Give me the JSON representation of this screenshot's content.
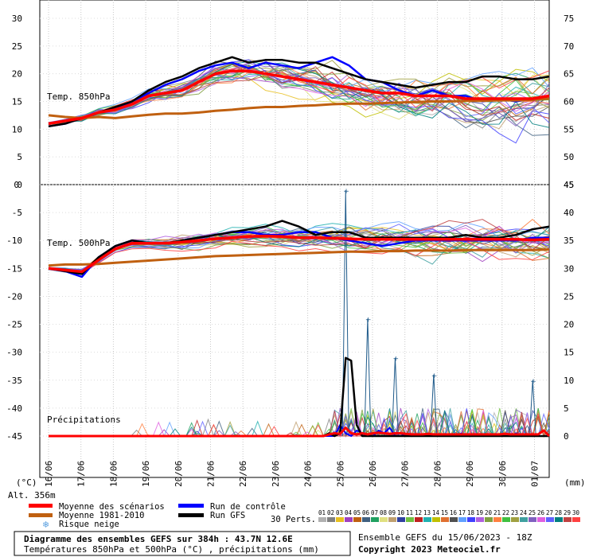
{
  "chart_data": {
    "type": "line",
    "title": "Diagramme des ensembles GEFS sur 384h : 43.7N 12.6E",
    "subtitle": "Températures 850hPa et 500hPa (°C) , précipitations (mm)",
    "run_info": "Ensemble GEFS du 15/06/2023 - 18Z",
    "copyright": "Copyright 2023 Meteociel.fr",
    "altitude_label": "Alt. 356m",
    "left_unit": "(°C)",
    "right_unit": "(mm)",
    "x_dates": [
      "16/06",
      "17/06",
      "18/06",
      "19/06",
      "20/06",
      "21/06",
      "22/06",
      "23/06",
      "24/06",
      "25/06",
      "26/06",
      "27/06",
      "28/06",
      "29/06",
      "30/06",
      "01/07"
    ],
    "upper_panel": {
      "label": "Temp. 850hPa",
      "y_ticks": [
        30,
        25,
        20,
        15,
        10,
        5,
        0
      ],
      "right_ticks": [
        75,
        70,
        65,
        60,
        55,
        50,
        45
      ],
      "ylim": [
        0,
        32
      ],
      "mean": [
        11,
        11.5,
        12,
        13,
        13.5,
        14.5,
        16,
        16.5,
        17,
        18.5,
        20,
        20.5,
        20.5,
        20,
        19.5,
        19,
        18.5,
        18,
        17.5,
        17,
        16.5,
        16.5,
        16,
        16,
        16,
        15.5,
        15.5,
        15.5,
        15.5,
        15.5,
        16
      ],
      "climatology": [
        12.5,
        12.2,
        12,
        12.2,
        12,
        12.3,
        12.6,
        12.8,
        12.8,
        13,
        13.3,
        13.5,
        13.8,
        14,
        14,
        14.2,
        14.3,
        14.5,
        14.6,
        14.6,
        14.7,
        14.8,
        14.9,
        15,
        15,
        15.1,
        15.1,
        15.2,
        15.2,
        15.3,
        15.5
      ],
      "control": [
        10.5,
        11,
        12,
        13,
        13.5,
        15,
        16.5,
        18,
        19,
        20.5,
        21.5,
        22,
        21,
        22,
        21.5,
        21,
        22,
        23,
        21.5,
        19,
        18.5,
        17,
        16,
        17,
        16,
        16,
        15,
        15.5,
        15,
        15.5,
        16
      ],
      "gfs": [
        10.5,
        11,
        12,
        13,
        14,
        15,
        17,
        18.5,
        19.5,
        21,
        22,
        23,
        22,
        22.5,
        22.5,
        22,
        22,
        21,
        20,
        19,
        18.5,
        18,
        17.5,
        18,
        18.5,
        18.5,
        19.5,
        19.5,
        19,
        19,
        19.5
      ]
    },
    "lower_panel": {
      "label": "Temp. 500hPa",
      "y_ticks": [
        0,
        -5,
        -10,
        -15,
        -20,
        -25,
        -30,
        -35,
        -40,
        -45
      ],
      "right_ticks": [
        45,
        40,
        35,
        30,
        25,
        20,
        15,
        10,
        5,
        0
      ],
      "ylim": [
        -50,
        0
      ],
      "mean": [
        -15,
        -15.3,
        -15.6,
        -13.5,
        -11.5,
        -10.5,
        -10.5,
        -10.5,
        -10.3,
        -10,
        -9.7,
        -9.5,
        -9.3,
        -9.2,
        -9.3,
        -9.5,
        -9.5,
        -9.6,
        -9.7,
        -9.8,
        -9.8,
        -9.8,
        -9.8,
        -9.8,
        -9.8,
        -9.8,
        -9.8,
        -9.8,
        -9.8,
        -9.9,
        -9.8
      ],
      "climatology": [
        -14.5,
        -14.3,
        -14.3,
        -14.2,
        -14,
        -13.8,
        -13.6,
        -13.4,
        -13.2,
        -13,
        -12.8,
        -12.7,
        -12.6,
        -12.5,
        -12.4,
        -12.3,
        -12.2,
        -12.1,
        -12,
        -12,
        -11.9,
        -11.9,
        -11.8,
        -11.8,
        -11.8,
        -11.7,
        -11.7,
        -11.7,
        -11.7,
        -11.7,
        -11.6
      ],
      "control": [
        -15,
        -15.5,
        -16.5,
        -13,
        -11,
        -10,
        -10.5,
        -10.5,
        -10,
        -9.5,
        -9,
        -8.5,
        -8.5,
        -9,
        -9,
        -8.5,
        -8.5,
        -9.5,
        -10,
        -10.5,
        -11,
        -10.5,
        -10,
        -10,
        -10,
        -10,
        -10,
        -10,
        -10,
        -9.5,
        -9.5
      ],
      "gfs": [
        -15,
        -15.5,
        -16,
        -13,
        -11,
        -10,
        -10.5,
        -10.5,
        -10,
        -9.5,
        -9,
        -8.5,
        -8,
        -7.5,
        -6.5,
        -7.5,
        -9,
        -8.5,
        -8.5,
        -9.5,
        -9.5,
        -9.5,
        -9.5,
        -9.5,
        -9.5,
        -9,
        -9.5,
        -9.5,
        -9,
        -8,
        -7.5
      ]
    },
    "precip_panel": {
      "label": "Précipitations",
      "ylim": [
        0,
        45
      ],
      "mean": [
        0,
        0,
        0,
        0,
        0,
        0,
        0,
        0,
        0,
        0,
        0,
        0,
        0,
        0,
        0,
        0,
        0,
        0,
        0,
        0,
        0,
        0,
        0,
        0,
        0,
        0,
        0,
        0,
        0,
        0,
        0,
        0,
        0,
        0,
        0,
        0,
        0,
        0,
        0,
        0,
        0,
        0,
        0,
        0,
        0,
        0,
        0,
        0,
        0,
        0,
        0,
        0.3,
        0.5,
        0.4,
        1.5,
        0.5,
        0.3,
        0.5,
        0.3,
        0.5,
        0.6,
        0.5,
        0.4,
        0.5,
        0.5,
        0.4,
        0.3,
        0.3,
        0.3,
        0.4,
        0.3,
        0.3,
        0.3,
        0.3,
        0.3,
        0.3,
        0.3,
        0.3,
        0.3,
        0.3,
        0.3,
        0.3,
        0.3,
        0.4,
        0.3,
        0.3,
        0.3,
        0.3,
        0.3,
        0.3,
        1,
        0
      ],
      "control": [
        0,
        0,
        0,
        0,
        0,
        0,
        0,
        0,
        0,
        0,
        0,
        0,
        0,
        0,
        0,
        0,
        0,
        0,
        0,
        0,
        0,
        0,
        0,
        0,
        0,
        0,
        0,
        0,
        0,
        0,
        0,
        0,
        0,
        0,
        0,
        0,
        0,
        0,
        0,
        0,
        0,
        0,
        0,
        0,
        0,
        0,
        0,
        0,
        0,
        0,
        0,
        0,
        0,
        2,
        0.5,
        0,
        1,
        0.5,
        0,
        0,
        1,
        0.5,
        1.5,
        0,
        0,
        0.5,
        0,
        0,
        0,
        0,
        0,
        0,
        0,
        0,
        0,
        0.5,
        0,
        0,
        0,
        0,
        0,
        0,
        0,
        0,
        0,
        0.5,
        0,
        0,
        0,
        0,
        0,
        0
      ],
      "gfs": [
        0,
        0,
        0,
        0,
        0,
        0,
        0,
        0,
        0,
        0,
        0,
        0,
        0,
        0,
        0,
        0,
        0,
        0,
        0,
        0,
        0,
        0,
        0,
        0,
        0,
        0,
        0,
        0,
        0,
        0,
        0,
        0,
        0,
        0,
        0,
        0,
        0,
        0,
        0,
        0,
        0,
        0,
        0,
        0,
        0,
        0,
        0,
        0,
        0,
        0,
        0,
        0.5,
        0,
        0.5,
        14,
        13.5,
        2,
        0,
        0,
        0,
        0,
        0,
        0,
        0,
        0,
        0,
        0,
        0,
        0,
        0,
        0,
        0,
        0,
        0,
        0,
        0,
        0,
        0,
        0,
        0,
        0,
        0,
        0,
        0,
        0,
        0,
        0,
        0,
        0,
        0,
        0,
        0
      ],
      "peaks": [
        {
          "at": 54,
          "value": 44
        },
        {
          "at": 58,
          "value": 21
        },
        {
          "at": 63,
          "value": 14
        },
        {
          "at": 70,
          "value": 11
        },
        {
          "at": 88,
          "value": 10
        }
      ]
    },
    "legend": [
      {
        "name": "Moyenne des scénarios",
        "color": "#ff0000"
      },
      {
        "name": "Moyenne 1981-2010",
        "color": "#c06010"
      },
      {
        "name": "Risque neige",
        "color": "#5aa0e0"
      },
      {
        "name": "Run de contrôle",
        "color": "#0000ff"
      },
      {
        "name": "Run GFS",
        "color": "#000000"
      }
    ],
    "perturbations": {
      "label": "30 Perts.",
      "ids": [
        "01",
        "02",
        "03",
        "04",
        "05",
        "06",
        "07",
        "08",
        "09",
        "10",
        "11",
        "12",
        "13",
        "14",
        "15",
        "16",
        "17",
        "18",
        "19",
        "20",
        "21",
        "22",
        "23",
        "24",
        "25",
        "26",
        "27",
        "28",
        "29",
        "30"
      ],
      "colors": [
        "#b0b0b0",
        "#808080",
        "#e8c020",
        "#a040c0",
        "#c06010",
        "#406080",
        "#20a060",
        "#e0e080",
        "#c0a070",
        "#3040a0",
        "#70c040",
        "#c02020",
        "#20b0b0",
        "#c0c000",
        "#e07030",
        "#505050",
        "#60a0ff",
        "#4040ff",
        "#b060e0",
        "#80a040",
        "#ff8040",
        "#40c040",
        "#a0a040",
        "#40a0a0",
        "#8060c0",
        "#e060e0",
        "#6060ff",
        "#008080",
        "#c04040",
        "#ff4040"
      ]
    }
  }
}
